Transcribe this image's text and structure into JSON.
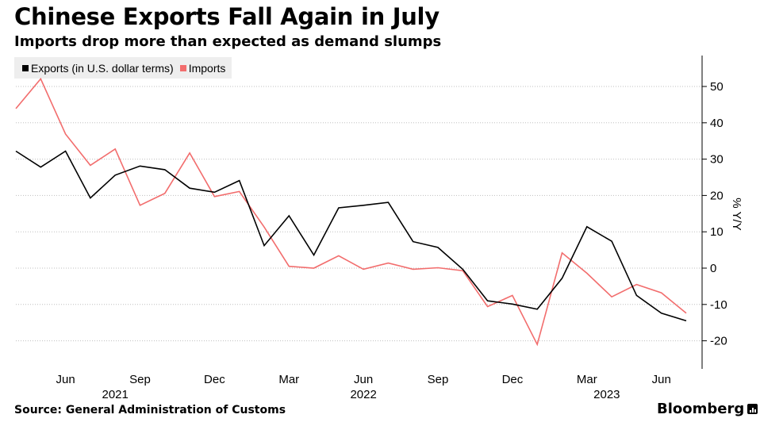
{
  "header": {
    "title": "Chinese Exports Fall Again in July",
    "subtitle": "Imports drop more than expected as demand slumps"
  },
  "legend": {
    "exports_label": "Exports (in U.S. dollar terms)",
    "imports_label": "Imports"
  },
  "footer": {
    "source": "Source: General Administration of Customs",
    "brand": "Bloomberg"
  },
  "colors": {
    "exports": "#000000",
    "imports": "#f26d6d",
    "grid": "#bfbfbf",
    "legend_bg": "#eeeeee"
  },
  "chart_data": {
    "type": "line",
    "title": "Chinese Exports Fall Again in July",
    "subtitle": "Imports drop more than expected as demand slumps",
    "ylabel": "% Y/Y",
    "xlabel": "",
    "ylim": [
      -27,
      58
    ],
    "yticks": [
      -20,
      -10,
      0,
      10,
      20,
      30,
      40,
      50
    ],
    "x": [
      "2021-04",
      "2021-05",
      "2021-06",
      "2021-07",
      "2021-08",
      "2021-09",
      "2021-10",
      "2021-11",
      "2021-12",
      "2022-01",
      "2022-02",
      "2022-03",
      "2022-04",
      "2022-05",
      "2022-06",
      "2022-07",
      "2022-08",
      "2022-09",
      "2022-10",
      "2022-11",
      "2022-12",
      "2023-01",
      "2023-02",
      "2023-03",
      "2023-04",
      "2023-05",
      "2023-06",
      "2023-07"
    ],
    "x_ticks": [
      {
        "index": 2,
        "label": "Jun"
      },
      {
        "index": 5,
        "label": "Sep"
      },
      {
        "index": 8,
        "label": "Dec"
      },
      {
        "index": 11,
        "label": "Mar"
      },
      {
        "index": 14,
        "label": "Jun"
      },
      {
        "index": 17,
        "label": "Sep"
      },
      {
        "index": 20,
        "label": "Dec"
      },
      {
        "index": 23,
        "label": "Mar"
      },
      {
        "index": 26,
        "label": "Jun"
      }
    ],
    "year_labels": [
      {
        "index": 4,
        "label": "2021"
      },
      {
        "index": 14,
        "label": "2022"
      },
      {
        "index": 23.8,
        "label": "2023"
      }
    ],
    "series": [
      {
        "name": "Exports (in U.S. dollar terms)",
        "color": "#000000",
        "values": [
          32.2,
          27.8,
          32.2,
          19.3,
          25.6,
          28.1,
          27.1,
          22.0,
          20.9,
          24.1,
          6.2,
          14.4,
          3.6,
          16.6,
          17.3,
          18.1,
          7.3,
          5.7,
          -0.3,
          -9.0,
          -9.9,
          -11.3,
          -2.8,
          11.4,
          7.4,
          -7.5,
          -12.4,
          -14.5
        ]
      },
      {
        "name": "Imports",
        "color": "#f26d6d",
        "values": [
          43.9,
          52.1,
          36.9,
          28.3,
          32.8,
          17.3,
          20.6,
          31.7,
          19.7,
          21.1,
          11.3,
          0.5,
          0.0,
          3.4,
          -0.3,
          1.4,
          -0.3,
          0.1,
          -0.7,
          -10.6,
          -7.5,
          -21.0,
          4.2,
          -1.4,
          -7.9,
          -4.5,
          -6.8,
          -12.4
        ]
      }
    ]
  }
}
